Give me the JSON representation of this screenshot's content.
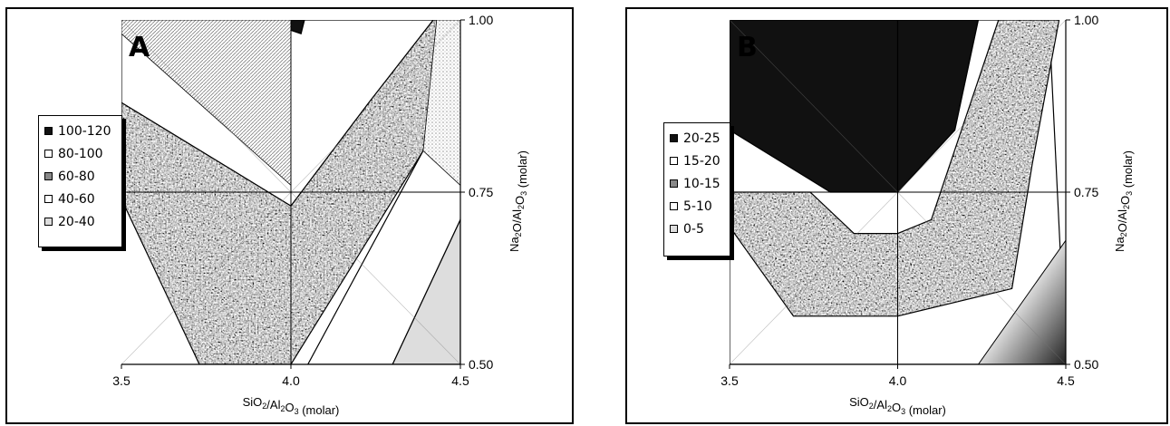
{
  "chart_data": [
    {
      "panel": "A",
      "type": "contour",
      "xlabel": "SiO2/Al2O3 (molar)",
      "ylabel": "Na2O/Al2O3 (molar)",
      "xlim": [
        3.5,
        4.5
      ],
      "ylim": [
        0.5,
        1.0
      ],
      "x_ticks": [
        "3.5",
        "4.0",
        "4.5"
      ],
      "y_ticks": [
        "0.50",
        "0.75",
        "1.00"
      ],
      "legend": [
        {
          "label": "100-120",
          "fill": "#111111"
        },
        {
          "label": "80-100",
          "fill": "#ffffff"
        },
        {
          "label": "60-80",
          "fill": "#888888"
        },
        {
          "label": "40-60",
          "fill": "#ffffff"
        },
        {
          "label": "20-40",
          "fill": "#dddddd"
        }
      ],
      "regions": [
        {
          "level": "100-120",
          "points": [
            [
              3.91,
              1.0
            ],
            [
              4.04,
              1.0
            ],
            [
              4.03,
              0.98
            ]
          ]
        },
        {
          "level": "80-100",
          "points": [
            [
              3.5,
              1.0
            ],
            [
              3.91,
              1.0
            ],
            [
              4.03,
              0.98
            ],
            [
              4.04,
              1.0
            ],
            [
              4.42,
              1.0
            ],
            [
              4.23,
              0.88
            ],
            [
              4.0,
              0.73
            ],
            [
              3.5,
              0.88
            ]
          ]
        },
        {
          "level": "60-80",
          "points": [
            [
              3.5,
              0.88
            ],
            [
              4.0,
              0.73
            ],
            [
              4.23,
              0.88
            ],
            [
              4.42,
              1.0
            ],
            [
              4.52,
              1.0
            ],
            [
              4.39,
              0.81
            ],
            [
              4.0,
              0.5
            ],
            [
              3.73,
              0.5
            ],
            [
              3.5,
              0.74
            ]
          ]
        },
        {
          "level": "40-60",
          "points": [
            [
              4.39,
              0.81
            ],
            [
              4.52,
              1.0
            ],
            [
              4.5,
              0.71
            ],
            [
              4.3,
              0.5
            ],
            [
              4.05,
              0.5
            ]
          ]
        },
        {
          "level": "20-40",
          "points": [
            [
              4.3,
              0.5
            ],
            [
              4.5,
              0.71
            ],
            [
              4.5,
              0.5
            ]
          ]
        }
      ],
      "hatch_regions": [
        {
          "style": "diagonal",
          "points": [
            [
              3.5,
              1.0
            ],
            [
              4.0,
              1.0
            ],
            [
              4.0,
              0.76
            ],
            [
              3.5,
              0.98
            ]
          ]
        },
        {
          "style": "dots",
          "points": [
            [
              4.43,
              1.0
            ],
            [
              4.5,
              1.0
            ],
            [
              4.5,
              0.76
            ],
            [
              4.39,
              0.81
            ]
          ]
        }
      ]
    },
    {
      "panel": "B",
      "type": "contour",
      "xlabel": "SiO2/Al2O3 (molar)",
      "ylabel": "Na2O/Al2O3 (molar)",
      "xlim": [
        3.5,
        4.5
      ],
      "ylim": [
        0.5,
        1.0
      ],
      "x_ticks": [
        "3.5",
        "4.0",
        "4.5"
      ],
      "y_ticks": [
        "0.50",
        "0.75",
        "1.00"
      ],
      "legend": [
        {
          "label": "20-25",
          "fill": "#111111"
        },
        {
          "label": "15-20",
          "fill": "#ffffff"
        },
        {
          "label": "10-15",
          "fill": "#888888"
        },
        {
          "label": "5-10",
          "fill": "#ffffff"
        },
        {
          "label": "0-5",
          "fill": "#dddddd"
        }
      ],
      "regions": [
        {
          "level": "20-25",
          "points": [
            [
              3.5,
              1.0
            ],
            [
              4.0,
              1.0
            ],
            [
              4.0,
              0.75
            ],
            [
              3.8,
              0.75
            ],
            [
              3.5,
              0.84
            ]
          ]
        },
        {
          "level": "20-25",
          "points": [
            [
              4.0,
              1.0
            ],
            [
              4.24,
              1.0
            ],
            [
              4.17,
              0.84
            ],
            [
              4.0,
              0.75
            ]
          ]
        },
        {
          "level": "15-20",
          "points": [
            [
              3.8,
              0.75
            ],
            [
              4.0,
              0.75
            ],
            [
              4.17,
              0.84
            ],
            [
              4.24,
              1.0
            ],
            [
              4.45,
              1.0
            ],
            [
              4.5,
              0.5
            ],
            [
              3.5,
              0.5
            ],
            [
              3.5,
              0.84
            ]
          ]
        },
        {
          "level": "10-15",
          "points": [
            [
              3.5,
              0.75
            ],
            [
              3.74,
              0.75
            ],
            [
              3.87,
              0.69
            ],
            [
              4.0,
              0.69
            ],
            [
              4.1,
              0.71
            ],
            [
              4.3,
              1.0
            ],
            [
              4.48,
              1.0
            ],
            [
              4.4,
              0.79
            ],
            [
              4.34,
              0.61
            ],
            [
              4.0,
              0.57
            ],
            [
              3.69,
              0.57
            ],
            [
              3.5,
              0.7
            ]
          ]
        },
        {
          "level": "0-5",
          "points": [
            [
              4.24,
              0.5
            ],
            [
              4.5,
              0.68
            ],
            [
              4.5,
              0.5
            ]
          ]
        }
      ],
      "hatch_regions": []
    }
  ]
}
